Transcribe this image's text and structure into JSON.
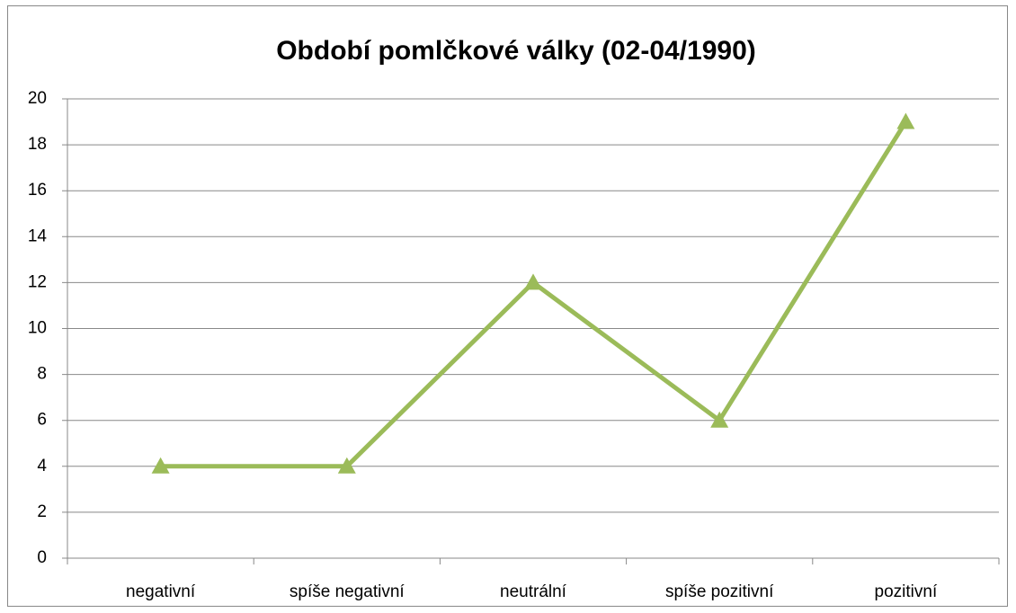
{
  "chart_data": {
    "type": "line",
    "title": "Období pomlčkové války (02-04/1990)",
    "categories": [
      "negativní",
      "spíše negativní",
      "neutrální",
      "spíše pozitivní",
      "pozitivní"
    ],
    "series": [
      {
        "name": "Období pomlčkové války (02-04/1990)",
        "color": "#9bbb59",
        "values": [
          4,
          4,
          12,
          6,
          19
        ]
      }
    ],
    "ylim": [
      0,
      20
    ],
    "yticks": [
      0,
      2,
      4,
      6,
      8,
      10,
      12,
      14,
      16,
      18,
      20
    ],
    "grid": true,
    "legend": false
  }
}
